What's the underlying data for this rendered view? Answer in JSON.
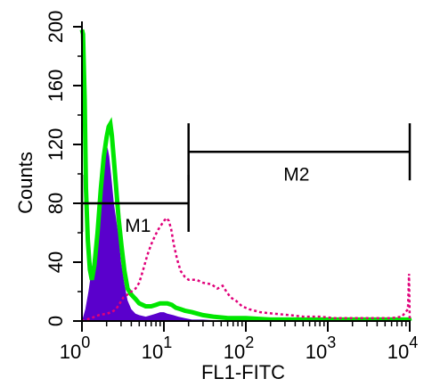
{
  "chart_data": {
    "type": "histogram",
    "x_scale": "log",
    "xlim": [
      1,
      10000
    ],
    "ylim": [
      0,
      200
    ],
    "xlabel": "FL1-FITC",
    "ylabel": "Counts",
    "x_ticks": [
      {
        "value": 1,
        "base": "10",
        "exp": "0"
      },
      {
        "value": 10,
        "base": "10",
        "exp": "1"
      },
      {
        "value": 100,
        "base": "10",
        "exp": "2"
      },
      {
        "value": 1000,
        "base": "10",
        "exp": "3"
      },
      {
        "value": 10000,
        "base": "10",
        "exp": "4"
      }
    ],
    "y_ticks": [
      {
        "value": 0,
        "label": "0"
      },
      {
        "value": 40,
        "label": "40"
      },
      {
        "value": 80,
        "label": "80"
      },
      {
        "value": 120,
        "label": "120"
      },
      {
        "value": 160,
        "label": "160"
      },
      {
        "value": 200,
        "label": "200"
      }
    ],
    "grid": false,
    "series": [
      {
        "style": "filled",
        "fill_color": "#5a00cc",
        "points": [
          [
            1.0,
            0
          ],
          [
            1.1,
            8
          ],
          [
            1.2,
            20
          ],
          [
            1.35,
            40
          ],
          [
            1.5,
            62
          ],
          [
            1.65,
            85
          ],
          [
            1.8,
            102
          ],
          [
            1.95,
            112
          ],
          [
            2.05,
            118
          ],
          [
            2.15,
            112
          ],
          [
            2.3,
            96
          ],
          [
            2.45,
            80
          ],
          [
            2.6,
            70
          ],
          [
            2.8,
            58
          ],
          [
            3.0,
            40
          ],
          [
            3.3,
            25
          ],
          [
            3.6,
            14
          ],
          [
            4.0,
            8
          ],
          [
            4.5,
            5
          ],
          [
            5.0,
            4
          ],
          [
            6.0,
            3
          ],
          [
            7.0,
            4
          ],
          [
            8.0,
            5
          ],
          [
            9.0,
            6
          ],
          [
            10.0,
            6
          ],
          [
            11.0,
            5
          ],
          [
            13.0,
            4
          ],
          [
            15.0,
            3
          ],
          [
            18.0,
            2
          ],
          [
            22.0,
            1
          ],
          [
            30.0,
            1
          ],
          [
            60.0,
            0
          ],
          [
            200.0,
            0
          ],
          [
            10000,
            0
          ]
        ]
      },
      {
        "style": "line",
        "color": "#00e600",
        "points": [
          [
            1.0,
            198
          ],
          [
            1.03,
            195
          ],
          [
            1.08,
            150
          ],
          [
            1.12,
            90
          ],
          [
            1.18,
            55
          ],
          [
            1.25,
            35
          ],
          [
            1.32,
            28
          ],
          [
            1.42,
            38
          ],
          [
            1.55,
            60
          ],
          [
            1.7,
            90
          ],
          [
            1.85,
            112
          ],
          [
            2.0,
            125
          ],
          [
            2.12,
            132
          ],
          [
            2.22,
            134
          ],
          [
            2.32,
            126
          ],
          [
            2.45,
            110
          ],
          [
            2.6,
            92
          ],
          [
            2.8,
            70
          ],
          [
            3.05,
            50
          ],
          [
            3.3,
            34
          ],
          [
            3.6,
            22
          ],
          [
            4.0,
            18
          ],
          [
            4.5,
            15
          ],
          [
            5.0,
            12
          ],
          [
            6.0,
            10
          ],
          [
            7.0,
            10
          ],
          [
            8.0,
            11
          ],
          [
            9.0,
            12
          ],
          [
            10.0,
            12
          ],
          [
            11.0,
            12
          ],
          [
            12.5,
            11
          ],
          [
            14.0,
            9
          ],
          [
            16.0,
            8
          ],
          [
            18.0,
            7
          ],
          [
            22.0,
            6
          ],
          [
            30.0,
            4
          ],
          [
            40.0,
            3
          ],
          [
            60.0,
            2
          ],
          [
            100.0,
            2
          ],
          [
            200.0,
            1
          ],
          [
            500.0,
            1
          ],
          [
            2000.0,
            1
          ],
          [
            9900,
            1
          ],
          [
            10000,
            0
          ]
        ]
      },
      {
        "style": "dotted",
        "color": "#e0007a",
        "points": [
          [
            1.0,
            0
          ],
          [
            1.3,
            2
          ],
          [
            1.6,
            4
          ],
          [
            2.0,
            5
          ],
          [
            2.3,
            6
          ],
          [
            2.6,
            8
          ],
          [
            2.9,
            12
          ],
          [
            3.2,
            16
          ],
          [
            3.6,
            18
          ],
          [
            4.0,
            20
          ],
          [
            4.5,
            22
          ],
          [
            5.0,
            26
          ],
          [
            5.6,
            35
          ],
          [
            6.3,
            45
          ],
          [
            7.0,
            52
          ],
          [
            7.8,
            58
          ],
          [
            8.5,
            62
          ],
          [
            9.2,
            65
          ],
          [
            10.0,
            68
          ],
          [
            10.8,
            70
          ],
          [
            11.5,
            68
          ],
          [
            12.3,
            62
          ],
          [
            13.2,
            52
          ],
          [
            14.5,
            42
          ],
          [
            16.0,
            34
          ],
          [
            18.0,
            30
          ],
          [
            20.0,
            28
          ],
          [
            25.0,
            28
          ],
          [
            30.0,
            26
          ],
          [
            38.0,
            25
          ],
          [
            45.0,
            22
          ],
          [
            52.0,
            24
          ],
          [
            58.0,
            20
          ],
          [
            65.0,
            16
          ],
          [
            75.0,
            14
          ],
          [
            90.0,
            10
          ],
          [
            110.0,
            8
          ],
          [
            150.0,
            6
          ],
          [
            220.0,
            5
          ],
          [
            350.0,
            4
          ],
          [
            500.0,
            3
          ],
          [
            800.0,
            3
          ],
          [
            1200.0,
            2
          ],
          [
            3000.0,
            2
          ],
          [
            6000.0,
            2
          ],
          [
            8000.0,
            3
          ],
          [
            9500.0,
            8
          ],
          [
            9800.0,
            32
          ],
          [
            10000,
            0
          ]
        ]
      }
    ],
    "markers": [
      {
        "label": "M1",
        "x_start": 1,
        "x_end": 20,
        "y": 80
      },
      {
        "label": "M2",
        "x_start": 20,
        "x_end": 10000,
        "y": 115
      }
    ]
  }
}
